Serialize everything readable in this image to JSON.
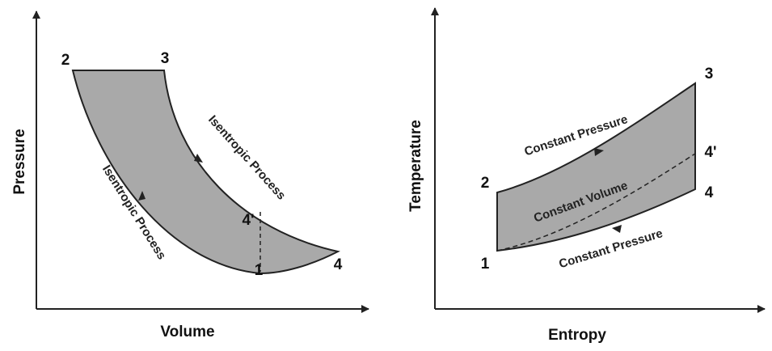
{
  "pv_diagram": {
    "y_axis_label": "Pressure",
    "x_axis_label": "Volume",
    "process_labels": [
      "Isentropic Process",
      "Isentropic Process"
    ],
    "points": [
      "1",
      "2",
      "3",
      "4",
      "4'"
    ]
  },
  "ts_diagram": {
    "y_axis_label": "Temperature",
    "x_axis_label": "Entropy",
    "process_labels": [
      "Constant Pressure",
      "Constant Volume",
      "Constant Pressure"
    ],
    "points": [
      "1",
      "2",
      "3",
      "4",
      "4'"
    ]
  }
}
